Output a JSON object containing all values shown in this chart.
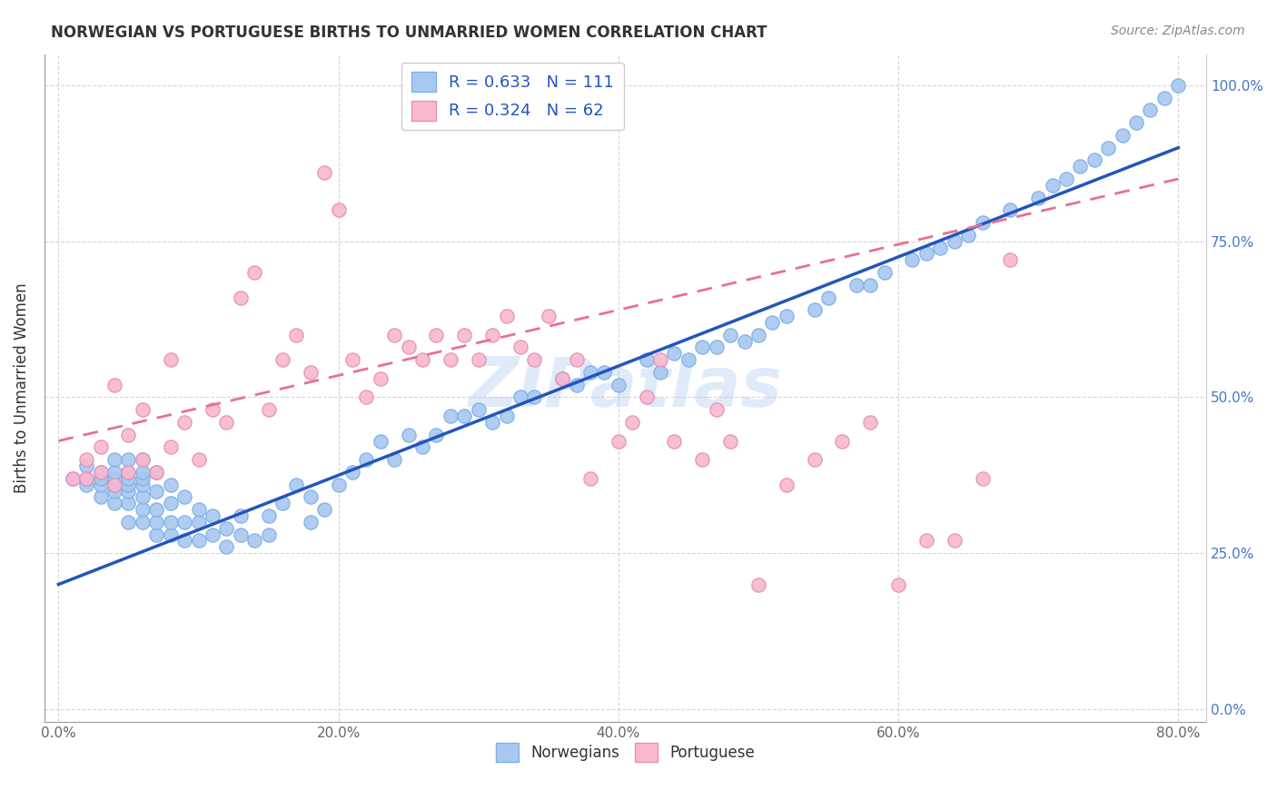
{
  "title": "NORWEGIAN VS PORTUGUESE BIRTHS TO UNMARRIED WOMEN CORRELATION CHART",
  "source": "Source: ZipAtlas.com",
  "ylabel": "Births to Unmarried Women",
  "xlabel_ticks": [
    "0.0%",
    "20.0%",
    "40.0%",
    "60.0%",
    "80.0%"
  ],
  "xlabel_vals": [
    0.0,
    0.2,
    0.4,
    0.6,
    0.8
  ],
  "ylabel_ticks": [
    "0.0%",
    "25.0%",
    "50.0%",
    "75.0%",
    "100.0%"
  ],
  "ylabel_vals": [
    0.0,
    0.25,
    0.5,
    0.75,
    1.0
  ],
  "xlim": [
    -0.01,
    0.82
  ],
  "ylim": [
    -0.02,
    1.05
  ],
  "norwegian_R": 0.633,
  "norwegian_N": 111,
  "portuguese_R": 0.324,
  "portuguese_N": 62,
  "norwegian_color": "#a8c8f0",
  "norwegian_edge_color": "#7eb0e8",
  "portuguese_color": "#f8b8d0",
  "portuguese_edge_color": "#e890b0",
  "norwegian_line_color": "#2255bb",
  "portuguese_line_color": "#e87090",
  "norwegian_line_style": "solid",
  "portuguese_line_style": "dashed",
  "watermark": "ZIPatlas",
  "background_color": "#ffffff",
  "grid_color": "#cccccc",
  "right_tick_color": "#4477cc",
  "norwegian_line_x0": 0.0,
  "norwegian_line_y0": 0.2,
  "norwegian_line_x1": 0.8,
  "norwegian_line_y1": 0.9,
  "portuguese_line_x0": 0.0,
  "portuguese_line_x1": 0.8,
  "portuguese_line_y0": 0.43,
  "portuguese_line_y1": 0.85,
  "norwegian_scatter_x": [
    0.01,
    0.02,
    0.02,
    0.02,
    0.03,
    0.03,
    0.03,
    0.03,
    0.04,
    0.04,
    0.04,
    0.04,
    0.04,
    0.04,
    0.05,
    0.05,
    0.05,
    0.05,
    0.05,
    0.05,
    0.05,
    0.06,
    0.06,
    0.06,
    0.06,
    0.06,
    0.06,
    0.06,
    0.07,
    0.07,
    0.07,
    0.07,
    0.07,
    0.08,
    0.08,
    0.08,
    0.08,
    0.09,
    0.09,
    0.09,
    0.1,
    0.1,
    0.1,
    0.11,
    0.11,
    0.12,
    0.12,
    0.13,
    0.13,
    0.14,
    0.15,
    0.15,
    0.16,
    0.17,
    0.18,
    0.18,
    0.19,
    0.2,
    0.21,
    0.22,
    0.23,
    0.24,
    0.25,
    0.26,
    0.27,
    0.28,
    0.29,
    0.3,
    0.31,
    0.32,
    0.33,
    0.34,
    0.36,
    0.37,
    0.38,
    0.39,
    0.4,
    0.42,
    0.43,
    0.44,
    0.45,
    0.46,
    0.47,
    0.48,
    0.49,
    0.5,
    0.51,
    0.52,
    0.54,
    0.55,
    0.57,
    0.58,
    0.59,
    0.61,
    0.62,
    0.63,
    0.64,
    0.65,
    0.66,
    0.68,
    0.7,
    0.71,
    0.72,
    0.73,
    0.74,
    0.75,
    0.76,
    0.77,
    0.78,
    0.79,
    0.8
  ],
  "norwegian_scatter_y": [
    0.37,
    0.36,
    0.37,
    0.39,
    0.34,
    0.36,
    0.37,
    0.38,
    0.33,
    0.35,
    0.36,
    0.37,
    0.38,
    0.4,
    0.3,
    0.33,
    0.35,
    0.36,
    0.37,
    0.38,
    0.4,
    0.3,
    0.32,
    0.34,
    0.36,
    0.37,
    0.38,
    0.4,
    0.28,
    0.3,
    0.32,
    0.35,
    0.38,
    0.28,
    0.3,
    0.33,
    0.36,
    0.27,
    0.3,
    0.34,
    0.27,
    0.3,
    0.32,
    0.28,
    0.31,
    0.26,
    0.29,
    0.28,
    0.31,
    0.27,
    0.28,
    0.31,
    0.33,
    0.36,
    0.3,
    0.34,
    0.32,
    0.36,
    0.38,
    0.4,
    0.43,
    0.4,
    0.44,
    0.42,
    0.44,
    0.47,
    0.47,
    0.48,
    0.46,
    0.47,
    0.5,
    0.5,
    0.53,
    0.52,
    0.54,
    0.54,
    0.52,
    0.56,
    0.54,
    0.57,
    0.56,
    0.58,
    0.58,
    0.6,
    0.59,
    0.6,
    0.62,
    0.63,
    0.64,
    0.66,
    0.68,
    0.68,
    0.7,
    0.72,
    0.73,
    0.74,
    0.75,
    0.76,
    0.78,
    0.8,
    0.82,
    0.84,
    0.85,
    0.87,
    0.88,
    0.9,
    0.92,
    0.94,
    0.96,
    0.98,
    1.0
  ],
  "portuguese_scatter_x": [
    0.01,
    0.02,
    0.02,
    0.03,
    0.03,
    0.04,
    0.04,
    0.05,
    0.05,
    0.06,
    0.06,
    0.07,
    0.08,
    0.08,
    0.09,
    0.1,
    0.11,
    0.12,
    0.13,
    0.14,
    0.15,
    0.16,
    0.17,
    0.18,
    0.19,
    0.2,
    0.21,
    0.22,
    0.23,
    0.24,
    0.25,
    0.26,
    0.27,
    0.28,
    0.29,
    0.3,
    0.31,
    0.32,
    0.33,
    0.34,
    0.35,
    0.36,
    0.37,
    0.38,
    0.4,
    0.41,
    0.42,
    0.43,
    0.44,
    0.46,
    0.47,
    0.48,
    0.5,
    0.52,
    0.54,
    0.56,
    0.58,
    0.6,
    0.62,
    0.64,
    0.66,
    0.68
  ],
  "portuguese_scatter_y": [
    0.37,
    0.37,
    0.4,
    0.38,
    0.42,
    0.36,
    0.52,
    0.38,
    0.44,
    0.4,
    0.48,
    0.38,
    0.42,
    0.56,
    0.46,
    0.4,
    0.48,
    0.46,
    0.66,
    0.7,
    0.48,
    0.56,
    0.6,
    0.54,
    0.86,
    0.8,
    0.56,
    0.5,
    0.53,
    0.6,
    0.58,
    0.56,
    0.6,
    0.56,
    0.6,
    0.56,
    0.6,
    0.63,
    0.58,
    0.56,
    0.63,
    0.53,
    0.56,
    0.37,
    0.43,
    0.46,
    0.5,
    0.56,
    0.43,
    0.4,
    0.48,
    0.43,
    0.2,
    0.36,
    0.4,
    0.43,
    0.46,
    0.2,
    0.27,
    0.27,
    0.37,
    0.72
  ]
}
